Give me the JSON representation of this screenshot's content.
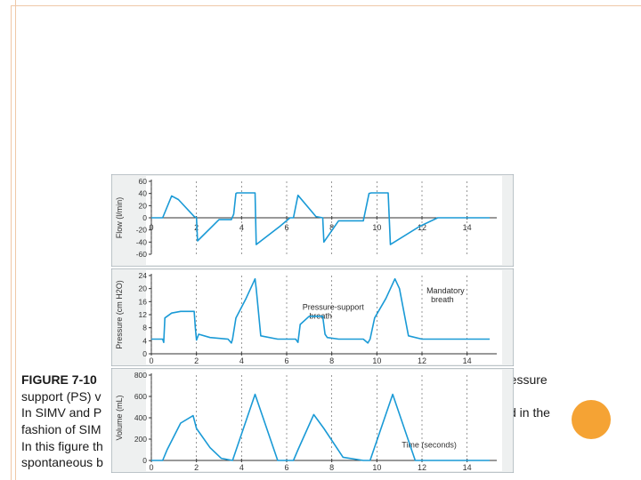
{
  "slide": {
    "caption_lines": [
      {
        "bold": "FIGURE 7-10",
        "text": " ",
        "tail": "ressure"
      },
      {
        "bold": "",
        "text": "support (PS) v",
        "tail": ""
      },
      {
        "bold": "",
        "text": " In SIMV and P",
        "tail": "d in the"
      },
      {
        "bold": "",
        "text": "fashion of SIM",
        "tail": ""
      },
      {
        "bold": "",
        "text": "In this figure th",
        "tail": ""
      },
      {
        "bold": "",
        "text": "spontaneous b",
        "tail": ""
      }
    ],
    "colors": {
      "accent_border": "#efc8a8",
      "dot": "#f5a334",
      "trace": "#1a9ad6",
      "panel_bg": "#eef0f0"
    }
  },
  "chart_data": [
    {
      "type": "line",
      "ylabel": "Flow (l/min)",
      "ylim": [
        -60,
        60
      ],
      "yticks": [
        60,
        40,
        20,
        0,
        -20,
        -40,
        -60
      ],
      "xlim": [
        0,
        15
      ],
      "xticks": [
        0,
        2,
        4,
        6,
        8,
        10,
        12,
        14
      ],
      "series": [
        {
          "x": [
            0,
            0.3,
            0.5,
            0.9,
            1.2,
            1.9,
            2.0,
            2.05,
            3.0,
            3.55,
            3.65,
            3.75,
            3.8,
            4.6,
            4.65,
            5.7,
            6.15,
            6.3,
            6.5,
            7.3,
            7.6,
            7.65,
            8.3,
            9.4,
            9.65,
            9.75,
            9.8,
            10.5,
            10.6,
            11.9,
            12.7,
            15
          ],
          "y": [
            0,
            0,
            0,
            36,
            30,
            2,
            0,
            -38,
            -3,
            -3,
            6,
            40,
            41,
            41,
            -44,
            -14,
            0,
            0,
            37,
            2,
            0,
            -40,
            -5,
            -5,
            40,
            41,
            41,
            41,
            -44,
            -14,
            0,
            0
          ]
        }
      ]
    },
    {
      "type": "line",
      "ylabel": "Pressure (cm H2O)",
      "ylim": [
        0,
        24
      ],
      "yticks": [
        24,
        20,
        16,
        12,
        8,
        4,
        0
      ],
      "xlim": [
        0,
        15
      ],
      "xticks": [
        0,
        2,
        4,
        6,
        8,
        10,
        12,
        14
      ],
      "annotations": [
        {
          "text": "Pressure-support",
          "x": 6.7,
          "y": 13.5
        },
        {
          "text": "breath",
          "x": 7.0,
          "y": 10.8
        },
        {
          "text": "Mandatory",
          "x": 12.2,
          "y": 18.5
        },
        {
          "text": "breath",
          "x": 12.4,
          "y": 15.8
        }
      ],
      "series": [
        {
          "x": [
            0,
            0.5,
            0.55,
            0.6,
            0.9,
            1.3,
            1.9,
            1.95,
            2.0,
            2.1,
            2.6,
            3.4,
            3.55,
            3.6,
            3.75,
            4.2,
            4.6,
            4.65,
            4.85,
            5.6,
            6.4,
            6.5,
            6.6,
            7.0,
            7.6,
            7.7,
            7.8,
            8.3,
            9.4,
            9.6,
            9.7,
            9.9,
            10.4,
            10.8,
            11.0,
            11.4,
            12.0,
            12.6,
            15
          ],
          "y": [
            4.5,
            4.5,
            3.5,
            11,
            12.5,
            13,
            13,
            8,
            4.2,
            6,
            5,
            4.5,
            3.3,
            4.5,
            11,
            17,
            23,
            20,
            5.5,
            4.5,
            4.5,
            3.5,
            9,
            11.5,
            11.5,
            6,
            5,
            4.5,
            4.5,
            3.3,
            4.5,
            11,
            17,
            23,
            20,
            5.5,
            4.5,
            4.5,
            4.5
          ]
        }
      ]
    },
    {
      "type": "line",
      "ylabel": "Volume (mL)",
      "xlabel": "Time (seconds)",
      "ylim": [
        0,
        800
      ],
      "yticks": [
        800,
        600,
        400,
        200,
        0
      ],
      "xlim": [
        0,
        15
      ],
      "xticks": [
        0,
        2,
        4,
        6,
        8,
        10,
        12,
        14
      ],
      "series": [
        {
          "x": [
            0,
            0.5,
            0.7,
            1.3,
            1.85,
            2.0,
            2.6,
            3.1,
            3.6,
            4.6,
            5.6,
            6.3,
            6.5,
            7.2,
            7.65,
            8.5,
            9.4,
            9.7,
            10.7,
            11.7,
            12.7,
            15
          ],
          "y": [
            0,
            0,
            100,
            350,
            420,
            300,
            120,
            20,
            0,
            620,
            0,
            0,
            100,
            430,
            300,
            30,
            0,
            0,
            620,
            0,
            0,
            0
          ]
        }
      ]
    }
  ]
}
